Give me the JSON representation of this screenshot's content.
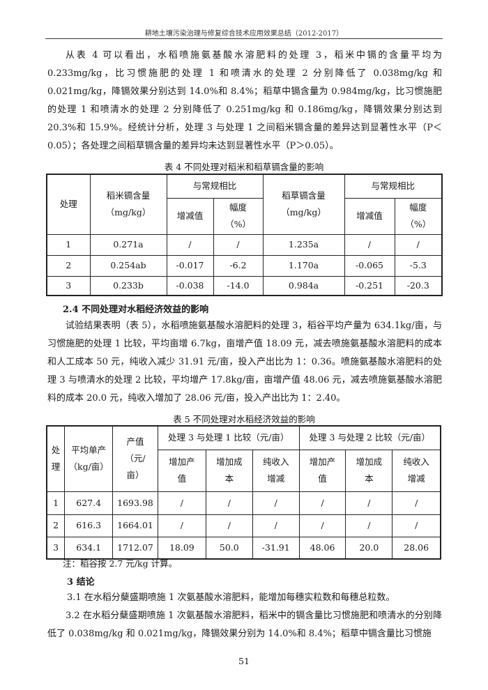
{
  "header": {
    "running_title": "耕地土壤污染治理与修复综合技术应用效果总结（2012-2017）"
  },
  "para1": "从表 4 可以看出，水稻喷施氨基酸水溶肥料的处理 3，稻米中镉的含量平均为 0.233mg/kg，比习惯施肥的处理 1 和喷清水的处理 2 分别降低了 0.038mg/kg 和 0.021mg/kg，降镉效果分别达到 14.0%和 8.4%；稻草中镉含量为 0.984mg/kg，比习惯施肥的处理 1 和喷清水的处理 2 分别降低了 0.251mg/kg 和 0.186mg/kg，降镉效果分别达到 20.3%和 15.9%。经统计分析，处理 3 与处理 1 之间稻米镉含量的差异达到显著性水平（P＜0.05）；各处理之间稻草镉含量的差异均未达到显著性水平（P＞0.05）。",
  "table4": {
    "caption": "表 4  不同处理对稻米和稻草镉含量的影响",
    "headers": {
      "treatment": "处理",
      "rice_cd": "稻米镉含量",
      "unit": "（mg/kg）",
      "compare": "与常规相比",
      "change": "增减值",
      "range": "幅度",
      "pct": "（%）",
      "straw_cd": "稻草镉含量"
    },
    "rows": [
      [
        "1",
        "0.271a",
        "/",
        "/",
        "1.235a",
        "/",
        "/"
      ],
      [
        "2",
        "0.254ab",
        "-0.017",
        "-6.2",
        "1.170a",
        "-0.065",
        "-5.3"
      ],
      [
        "3",
        "0.233b",
        "-0.038",
        "-14.0",
        "0.984a",
        "-0.251",
        "-20.3"
      ]
    ]
  },
  "section24": {
    "title": "2.4  不同处理对水稻经济效益的影响"
  },
  "para2": "试验结果表明（表 5），水稻喷施氨基酸水溶肥料的处理 3，稻谷平均产量为 634.1kg/亩，与习惯施肥的处理 1 比较，平均亩增 6.7kg，亩增产值 18.09 元，减去喷施氨基酸水溶肥料的成本和人工成本 50 元，纯收入减少 31.91 元/亩，投入产出比为 1：0.36。喷施氨基酸水溶肥料的处理 3 与喷清水的处理 2 比较，平均增产 17.8kg/亩，亩增产值 48.06 元，减去喷施氨基酸水溶肥料的成本 20.0 元，纯收入增加了 28.06 元/亩，投入产出比为 1：2.40。",
  "table5": {
    "caption": "表 5  不同处理对水稻经济效益的影响",
    "headers": {
      "treat1": "处",
      "treat2": "理",
      "yield": "平均单产",
      "yield_unit": "（kg/亩）",
      "value1": "产值",
      "value2": "（元/",
      "value3": "亩）",
      "cmp1": "处理 3 与处理 1 比较（元/亩）",
      "cmp2": "处理 3 与处理 2 比较（元/亩）",
      "inc_value1": "增加产",
      "inc_value2": "值",
      "inc_cost1": "增加成",
      "inc_cost2": "本",
      "net1": "纯收入",
      "net2": "增减"
    },
    "rows": [
      [
        "1",
        "627.4",
        "1693.98",
        "/",
        "/",
        "/",
        "/",
        "/",
        "/"
      ],
      [
        "2",
        "616.3",
        "1664.01",
        "/",
        "/",
        "/",
        "/",
        "/",
        "/"
      ],
      [
        "3",
        "634.1",
        "1712.07",
        "18.09",
        "50.0",
        "-31.91",
        "48.06",
        "20.0",
        "28.06"
      ]
    ],
    "note": "注：稻谷按 2.7 元/kg 计算。"
  },
  "section3": {
    "title": "3  结论",
    "p31": "3.1 在水稻分蘖盛期喷施 1 次氨基酸水溶肥料，能增加每穗实粒数和每穗总粒数。",
    "p32": "3.2 在水稻分蘖盛期喷施 1 次氨基酸水溶肥料，稻米中的镉含量比习惯施肥和喷清水的分别降低了 0.038mg/kg 和 0.021mg/kg，降镉效果分别为 14.0%和 8.4%；稻草中镉含量比习惯施"
  },
  "page_number": "51"
}
